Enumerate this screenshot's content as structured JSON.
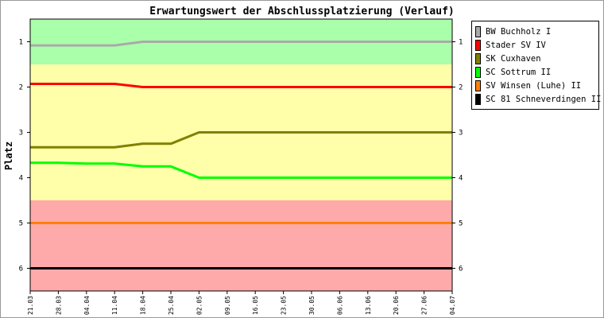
{
  "chart_data": {
    "type": "line",
    "title": "Erwartungswert der Abschlussplatzierung (Verlauf)",
    "xlabel": "",
    "ylabel": "Platz",
    "categories": [
      "21.03",
      "28.03",
      "04.04",
      "11.04",
      "18.04",
      "25.04",
      "02.05",
      "09.05",
      "16.05",
      "23.05",
      "30.05",
      "06.06",
      "13.06",
      "20.06",
      "27.06",
      "04.07"
    ],
    "y_ticks": [
      "1",
      "2",
      "3",
      "4",
      "5",
      "6"
    ],
    "ylim": [
      6.5,
      0.5
    ],
    "y_inverted": true,
    "grid": false,
    "legend_position": "top-right, outside plot",
    "bands": [
      {
        "from": 0.5,
        "to": 1.5,
        "color": "#aaffaa"
      },
      {
        "from": 1.5,
        "to": 4.5,
        "color": "#ffffaa"
      },
      {
        "from": 4.5,
        "to": 6.5,
        "color": "#ffaaaa"
      }
    ],
    "series": [
      {
        "name": "BW Buchholz I",
        "color": "#aaaaaa",
        "values": [
          1.08,
          1.08,
          1.08,
          1.08,
          1.0,
          1.0,
          1.0,
          1.0,
          1.0,
          1.0,
          1.0,
          1.0,
          1.0,
          1.0,
          1.0,
          1.0
        ]
      },
      {
        "name": "Stader SV IV",
        "color": "#ff0000",
        "values": [
          1.93,
          1.93,
          1.93,
          1.93,
          2.0,
          2.0,
          2.0,
          2.0,
          2.0,
          2.0,
          2.0,
          2.0,
          2.0,
          2.0,
          2.0,
          2.0
        ]
      },
      {
        "name": "SK Cuxhaven",
        "color": "#808000",
        "values": [
          3.33,
          3.33,
          3.33,
          3.33,
          3.25,
          3.25,
          3.0,
          3.0,
          3.0,
          3.0,
          3.0,
          3.0,
          3.0,
          3.0,
          3.0,
          3.0
        ]
      },
      {
        "name": "SC Sottrum II",
        "color": "#00ff00",
        "values": [
          3.67,
          3.67,
          3.69,
          3.69,
          3.75,
          3.75,
          4.0,
          4.0,
          4.0,
          4.0,
          4.0,
          4.0,
          4.0,
          4.0,
          4.0,
          4.0
        ]
      },
      {
        "name": "SV Winsen (Luhe) II",
        "color": "#ff8000",
        "values": [
          5.0,
          5.0,
          5.0,
          5.0,
          5.0,
          5.0,
          5.0,
          5.0,
          5.0,
          5.0,
          5.0,
          5.0,
          5.0,
          5.0,
          5.0,
          5.0
        ]
      },
      {
        "name": "SC 81 Schneverdingen II",
        "color": "#000000",
        "values": [
          6.0,
          6.0,
          6.0,
          6.0,
          6.0,
          6.0,
          6.0,
          6.0,
          6.0,
          6.0,
          6.0,
          6.0,
          6.0,
          6.0,
          6.0,
          6.0
        ]
      }
    ]
  }
}
